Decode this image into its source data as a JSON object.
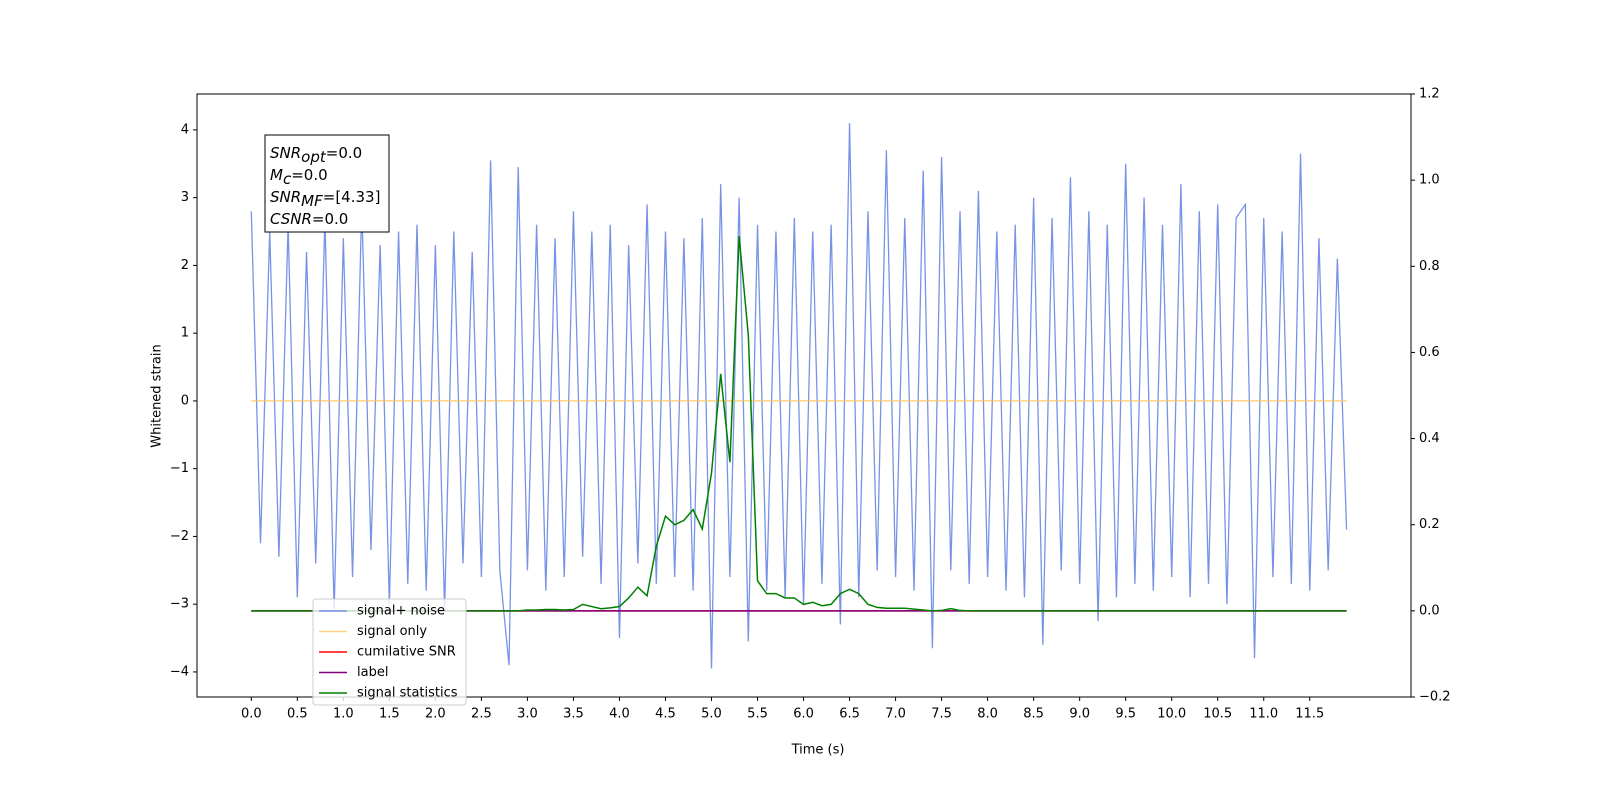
{
  "chart_data": {
    "type": "line",
    "xlabel": "Time (s)",
    "ylabel": "Whitened strain",
    "x": [
      0,
      0.1,
      0.2,
      0.3,
      0.4,
      0.5,
      0.6,
      0.7,
      0.8,
      0.9,
      1,
      1.1,
      1.2,
      1.3,
      1.4,
      1.5,
      1.6,
      1.7,
      1.8,
      1.9,
      2,
      2.1,
      2.2,
      2.3,
      2.4,
      2.5,
      2.6,
      2.7,
      2.8,
      2.9,
      3,
      3.1,
      3.2,
      3.3,
      3.4,
      3.5,
      3.6,
      3.7,
      3.8,
      3.9,
      4,
      4.1,
      4.2,
      4.3,
      4.4,
      4.5,
      4.6,
      4.7,
      4.8,
      4.9,
      5,
      5.1,
      5.2,
      5.3,
      5.4,
      5.5,
      5.6,
      5.7,
      5.8,
      5.9,
      6,
      6.1,
      6.2,
      6.3,
      6.4,
      6.5,
      6.6,
      6.7,
      6.8,
      6.9,
      7,
      7.1,
      7.2,
      7.3,
      7.4,
      7.5,
      7.6,
      7.7,
      7.8,
      7.9,
      8,
      8.1,
      8.2,
      8.3,
      8.4,
      8.5,
      8.6,
      8.7,
      8.8,
      8.9,
      9,
      9.1,
      9.2,
      9.3,
      9.4,
      9.5,
      9.6,
      9.7,
      9.8,
      9.9,
      10,
      10.1,
      10.2,
      10.3,
      10.4,
      10.5,
      10.6,
      10.7,
      10.8,
      10.9,
      11,
      11.1,
      11.2,
      11.3,
      11.4,
      11.5,
      11.6,
      11.7,
      11.8,
      11.9
    ],
    "series": [
      {
        "name": "signal+ noise",
        "color": "#7893e6",
        "axis": "y",
        "values": [
          2.8,
          -2.1,
          2.5,
          -2.3,
          2.6,
          -2.9,
          2.2,
          -2.4,
          2.7,
          -3.1,
          2.4,
          -2.6,
          2.9,
          -2.2,
          2.3,
          -3.0,
          2.5,
          -2.7,
          2.6,
          -2.8,
          2.3,
          -3.1,
          2.5,
          -2.4,
          2.2,
          -2.6,
          3.55,
          -2.5,
          -3.9,
          3.45,
          -2.5,
          2.6,
          -2.8,
          2.4,
          -2.6,
          2.8,
          -2.3,
          2.5,
          -2.7,
          2.6,
          -3.5,
          2.3,
          -2.4,
          2.9,
          -2.7,
          2.5,
          -2.6,
          2.4,
          -2.8,
          2.7,
          -3.95,
          3.2,
          -2.6,
          3.0,
          -3.55,
          2.6,
          -2.8,
          2.5,
          -2.9,
          2.7,
          -3.0,
          2.5,
          -2.7,
          2.6,
          -3.3,
          4.1,
          -2.9,
          2.8,
          -2.5,
          3.7,
          -2.6,
          2.7,
          -2.8,
          3.4,
          -3.65,
          3.6,
          -2.5,
          2.8,
          -2.7,
          3.1,
          -2.6,
          2.5,
          -2.8,
          2.6,
          -2.9,
          3.0,
          -3.6,
          2.7,
          -2.5,
          3.3,
          -2.7,
          2.8,
          -3.25,
          2.6,
          -2.9,
          3.5,
          -2.7,
          3.0,
          -2.8,
          2.6,
          -2.6,
          3.2,
          -2.9,
          2.8,
          -2.7,
          2.9,
          -3.0,
          2.7,
          2.9,
          -3.8,
          2.7,
          -2.6,
          2.5,
          -2.7,
          3.65,
          -2.8,
          2.4,
          -2.5,
          2.1,
          -1.9
        ]
      },
      {
        "name": "signal only",
        "color": "#ffbf4d",
        "axis": "y",
        "values": [
          0,
          0,
          0,
          0,
          0,
          0,
          0,
          0,
          0,
          0,
          0,
          0,
          0,
          0,
          0,
          0,
          0,
          0,
          0,
          0,
          0,
          0,
          0,
          0,
          0,
          0,
          0,
          0,
          0,
          0,
          0,
          0,
          0,
          0,
          0,
          0,
          0,
          0,
          0,
          0,
          0,
          0,
          0,
          0,
          0,
          0,
          0,
          0,
          0,
          0,
          0,
          0,
          0,
          0,
          0,
          0,
          0,
          0,
          0,
          0,
          0,
          0,
          0,
          0,
          0,
          0,
          0,
          0,
          0,
          0,
          0,
          0,
          0,
          0,
          0,
          0,
          0,
          0,
          0,
          0,
          0,
          0,
          0,
          0,
          0,
          0,
          0,
          0,
          0,
          0,
          0,
          0,
          0,
          0,
          0,
          0,
          0,
          0,
          0,
          0,
          0,
          0,
          0,
          0,
          0,
          0,
          0,
          0,
          0,
          0,
          0,
          0,
          0,
          0,
          0,
          0,
          0,
          0,
          0,
          0
        ]
      },
      {
        "name": "cumilative SNR",
        "color": "#ff0000",
        "axis": "y2",
        "values": [
          0,
          0,
          0,
          0,
          0,
          0,
          0,
          0,
          0,
          0,
          0,
          0,
          0,
          0,
          0,
          0,
          0,
          0,
          0,
          0,
          0,
          0,
          0,
          0,
          0,
          0,
          0,
          0,
          0,
          0,
          0,
          0,
          0,
          0,
          0,
          0,
          0,
          0,
          0,
          0,
          0,
          0,
          0,
          0,
          0,
          0,
          0,
          0,
          0,
          0,
          0,
          0,
          0,
          0,
          0,
          0,
          0,
          0,
          0,
          0,
          0,
          0,
          0,
          0,
          0,
          0,
          0,
          0,
          0,
          0,
          0,
          0,
          0,
          0,
          0,
          0,
          0,
          0,
          0,
          0,
          0,
          0,
          0,
          0,
          0,
          0,
          0,
          0,
          0,
          0,
          0,
          0,
          0,
          0,
          0,
          0,
          0,
          0,
          0,
          0,
          0,
          0,
          0,
          0,
          0,
          0,
          0,
          0,
          0,
          0,
          0,
          0,
          0,
          0,
          0,
          0,
          0,
          0,
          0,
          0
        ]
      },
      {
        "name": "label",
        "color": "#800080",
        "axis": "y2",
        "values": [
          0,
          0,
          0,
          0,
          0,
          0,
          0,
          0,
          0,
          0,
          0,
          0,
          0,
          0,
          0,
          0,
          0,
          0,
          0,
          0,
          0,
          0,
          0,
          0,
          0,
          0,
          0,
          0,
          0,
          0,
          0,
          0,
          0,
          0,
          0,
          0,
          0,
          0,
          0,
          0,
          0,
          0,
          0,
          0,
          0,
          0,
          0,
          0,
          0,
          0,
          0,
          0,
          0,
          0,
          0,
          0,
          0,
          0,
          0,
          0,
          0,
          0,
          0,
          0,
          0,
          0,
          0,
          0,
          0,
          0,
          0,
          0,
          0,
          0,
          0,
          0,
          0,
          0,
          0,
          0,
          0,
          0,
          0,
          0,
          0,
          0,
          0,
          0,
          0,
          0,
          0,
          0,
          0,
          0,
          0,
          0,
          0,
          0,
          0,
          0,
          0,
          0,
          0,
          0,
          0,
          0,
          0,
          0,
          0,
          0,
          0,
          0,
          0,
          0,
          0,
          0,
          0,
          0,
          0,
          0
        ]
      },
      {
        "name": "signal statistics",
        "color": "#008000",
        "axis": "y2",
        "values": [
          0,
          0,
          0,
          0,
          0,
          0,
          0,
          0,
          0,
          0,
          0,
          0,
          0,
          0,
          0,
          0,
          0,
          0,
          0,
          0,
          0,
          0,
          0,
          0,
          0,
          0,
          0,
          0,
          0,
          0,
          0.002,
          0.002,
          0.003,
          0.003,
          0.002,
          0.003,
          0.015,
          0.01,
          0.005,
          0.007,
          0.01,
          0.03,
          0.055,
          0.035,
          0.15,
          0.22,
          0.2,
          0.21,
          0.235,
          0.19,
          0.32,
          0.55,
          0.345,
          0.87,
          0.64,
          0.07,
          0.04,
          0.04,
          0.03,
          0.03,
          0.015,
          0.02,
          0.012,
          0.015,
          0.04,
          0.05,
          0.04,
          0.015,
          0.008,
          0.006,
          0.006,
          0.006,
          0.004,
          0.002,
          0,
          0.001,
          0.005,
          0.001,
          0,
          0,
          0,
          0,
          0,
          0,
          0,
          0,
          0,
          0,
          0,
          0,
          0,
          0,
          0,
          0,
          0,
          0,
          0,
          0,
          0,
          0,
          0,
          0,
          0,
          0,
          0,
          0,
          0,
          0,
          0,
          0,
          0,
          0,
          0,
          0,
          0,
          0,
          0,
          0,
          0,
          0
        ]
      }
    ],
    "xlim": [
      -0.59,
      12.6
    ],
    "xticks": [
      {
        "value": 0,
        "label": "0.0"
      },
      {
        "value": 0.5,
        "label": "0.5"
      },
      {
        "value": 1,
        "label": "1.0"
      },
      {
        "value": 1.5,
        "label": "1.5"
      },
      {
        "value": 2,
        "label": "2.0"
      },
      {
        "value": 2.5,
        "label": "2.5"
      },
      {
        "value": 3,
        "label": "3.0"
      },
      {
        "value": 3.5,
        "label": "3.5"
      },
      {
        "value": 4,
        "label": "4.0"
      },
      {
        "value": 4.5,
        "label": "4.5"
      },
      {
        "value": 5,
        "label": "5.0"
      },
      {
        "value": 5.5,
        "label": "5.5"
      },
      {
        "value": 6,
        "label": "6.0"
      },
      {
        "value": 6.5,
        "label": "6.5"
      },
      {
        "value": 7,
        "label": "7.0"
      },
      {
        "value": 7.5,
        "label": "7.5"
      },
      {
        "value": 8,
        "label": "8.0"
      },
      {
        "value": 8.5,
        "label": "8.5"
      },
      {
        "value": 9,
        "label": "9.0"
      },
      {
        "value": 9.5,
        "label": "9.5"
      },
      {
        "value": 10,
        "label": "10.0"
      },
      {
        "value": 10.5,
        "label": "10.5"
      },
      {
        "value": 11,
        "label": "11.0"
      },
      {
        "value": 11.5,
        "label": "11.5"
      }
    ],
    "ylim": [
      -4.37,
      4.53
    ],
    "yticks": [
      {
        "value": -4,
        "label": "−4"
      },
      {
        "value": -3,
        "label": "−3"
      },
      {
        "value": -2,
        "label": "−2"
      },
      {
        "value": -1,
        "label": "−1"
      },
      0,
      1,
      2,
      3,
      4
    ],
    "y2lim": [
      -0.2,
      1.2
    ],
    "y2ticks": [
      {
        "value": -0.2,
        "label": "−0.2"
      },
      {
        "value": 0,
        "label": "0.0"
      },
      {
        "value": 0.2,
        "label": "0.2"
      },
      {
        "value": 0.4,
        "label": "0.4"
      },
      {
        "value": 0.6,
        "label": "0.6"
      },
      {
        "value": 0.8,
        "label": "0.8"
      },
      {
        "value": 1,
        "label": "1.0"
      },
      {
        "value": 1.2,
        "label": "1.2"
      }
    ],
    "grid": false,
    "legend": "lower left",
    "annotation": [
      {
        "main": "SNR",
        "sub": "opt",
        "rest": "=0.0"
      },
      {
        "main": "M",
        "sub": "c",
        "rest": "=0.0"
      },
      {
        "main": "SNR",
        "sub": "MF",
        "rest": "=[4.33]"
      },
      {
        "main": "CSNR",
        "sub": "",
        "rest": "=0.0"
      }
    ]
  }
}
